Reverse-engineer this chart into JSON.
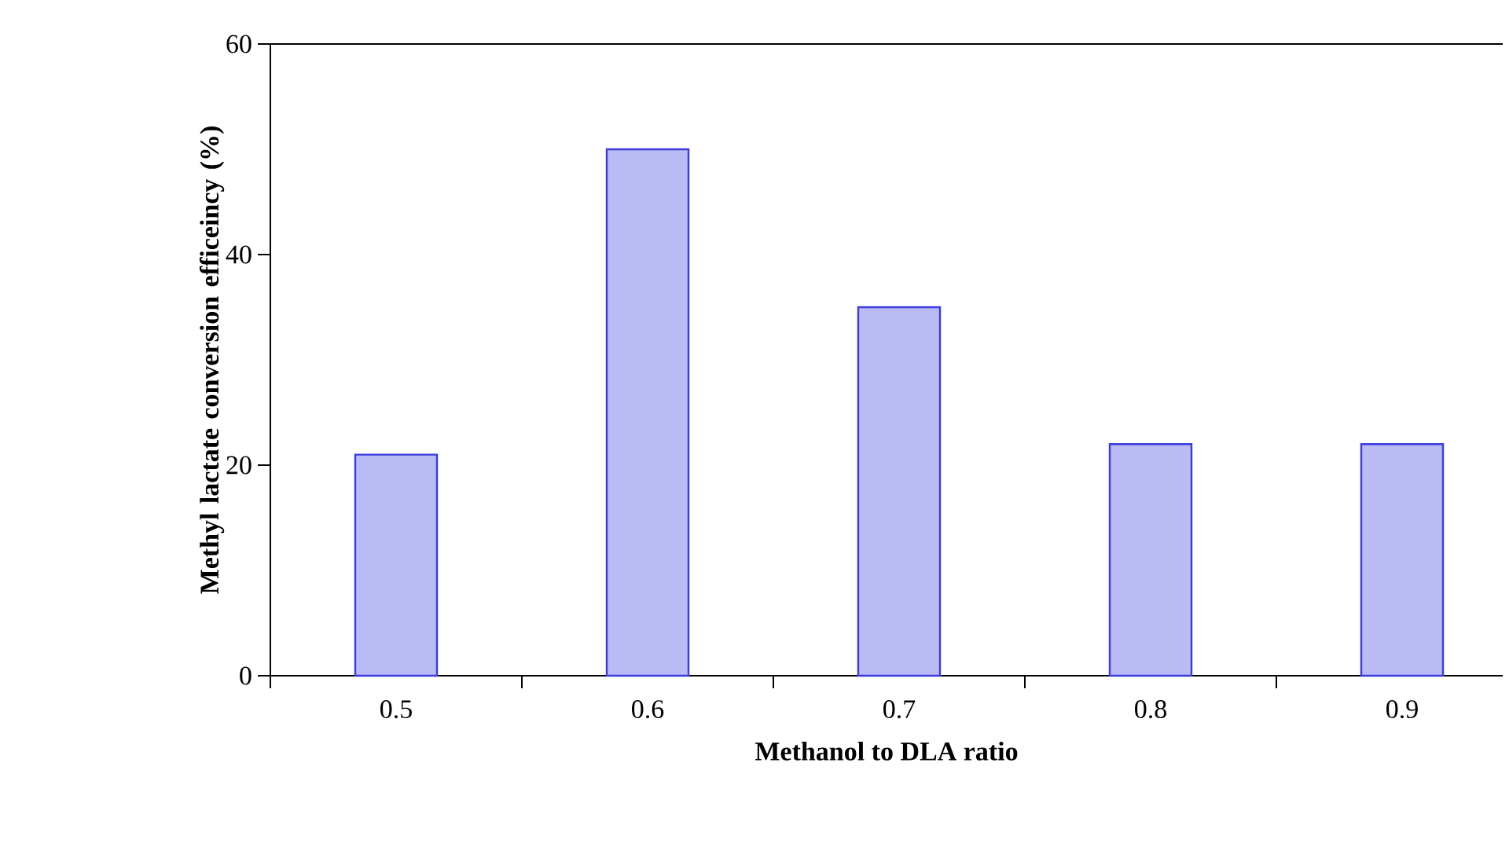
{
  "chart_data": {
    "type": "bar",
    "xlabel": "Methanol to DLA  ratio",
    "ylabel": "Methyl lactate conversion efficeincy (%)",
    "categories": [
      "0.5",
      "0.6",
      "0.7",
      "0.8",
      "0.9"
    ],
    "values": [
      21,
      50,
      35,
      22,
      22
    ],
    "color": "#3a3ae0",
    "ylim": [
      0,
      60
    ],
    "yticks": [
      0,
      20,
      40,
      60
    ],
    "grid": false
  }
}
